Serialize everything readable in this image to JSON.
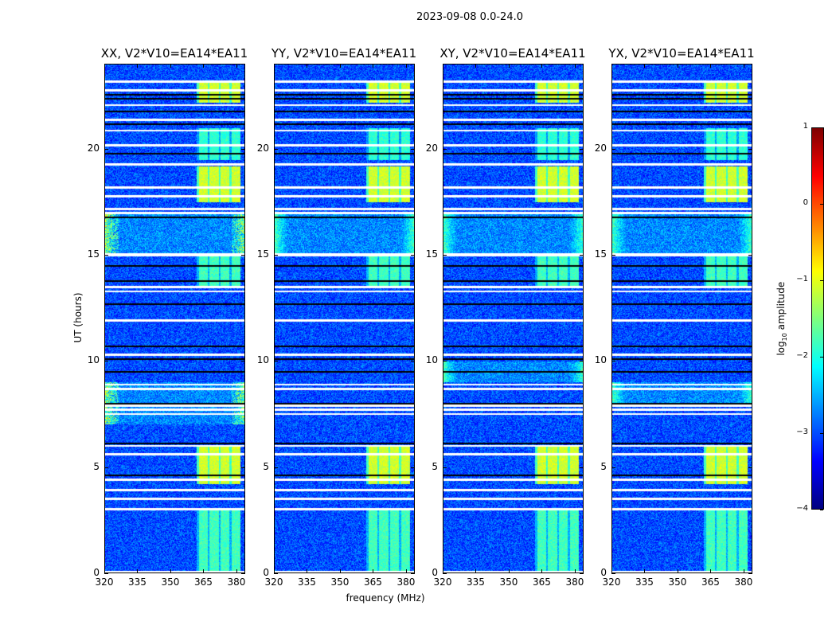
{
  "suptitle": "2023-09-08 0.0-24.0",
  "chart_data": {
    "type": "heatmap",
    "title": "2023-09-08 0.0-24.0",
    "xlabel": "frequency (MHz)",
    "ylabel": "UT (hours)",
    "xlim": [
      320,
      384
    ],
    "ylim": [
      0,
      24
    ],
    "xticks": [
      "320",
      "335",
      "350",
      "365",
      "380"
    ],
    "yticks": [
      "0",
      "5",
      "10",
      "15",
      "20"
    ],
    "panels": [
      {
        "title": "XX, V2*V10=EA14*EA11",
        "rfi_low_freq_ut": [
          [
            15,
            17
          ],
          [
            7,
            9
          ]
        ]
      },
      {
        "title": "YY, V2*V10=EA14*EA11",
        "rfi_low_freq_ut": [
          [
            15,
            17
          ]
        ]
      },
      {
        "title": "XY, V2*V10=EA14*EA11",
        "rfi_low_freq_ut": [
          [
            15,
            17
          ],
          [
            9,
            10
          ]
        ]
      },
      {
        "title": "YX, V2*V10=EA14*EA11",
        "rfi_low_freq_ut": [
          [
            15,
            17
          ],
          [
            8,
            9
          ]
        ]
      }
    ],
    "background_log10_amplitude": -3,
    "bright_band_mhz": [
      362,
      382
    ],
    "bright_band_ut_levels": [
      [
        0,
        3,
        -1.8
      ],
      [
        4.2,
        6,
        -1.1
      ],
      [
        17.5,
        19.2,
        -1.1
      ],
      [
        19.5,
        21,
        -1.9
      ],
      [
        22.2,
        23.2,
        -1.1
      ],
      [
        13.5,
        15,
        -1.8
      ]
    ],
    "flagged_ut_lines": [
      0.05,
      3.0,
      3.5,
      3.9,
      4.4,
      5.6,
      6.0,
      7.5,
      7.7,
      7.9,
      8.7,
      8.9,
      10.3,
      11.9,
      11.95,
      13.3,
      13.5,
      15.0,
      15.05,
      17.0,
      17.2,
      17.8,
      18.2,
      19.3,
      20.2,
      20.9,
      21.4,
      22.1,
      22.8,
      23.2
    ],
    "dark_ut_lines": [
      4.6,
      6.1,
      8.0,
      9.5,
      10.1,
      10.7,
      12.7,
      13.8,
      14.5,
      16.8,
      19.8,
      21.2,
      21.8,
      22.4,
      22.6
    ],
    "colorbar": {
      "label_prefix": "log",
      "label_sub": "10",
      "label_suffix": " amplitude",
      "range": [
        -4,
        1
      ],
      "ticks": [
        "1",
        "0",
        "−1",
        "−2",
        "−3",
        "−4"
      ],
      "colormap": "jet"
    }
  }
}
